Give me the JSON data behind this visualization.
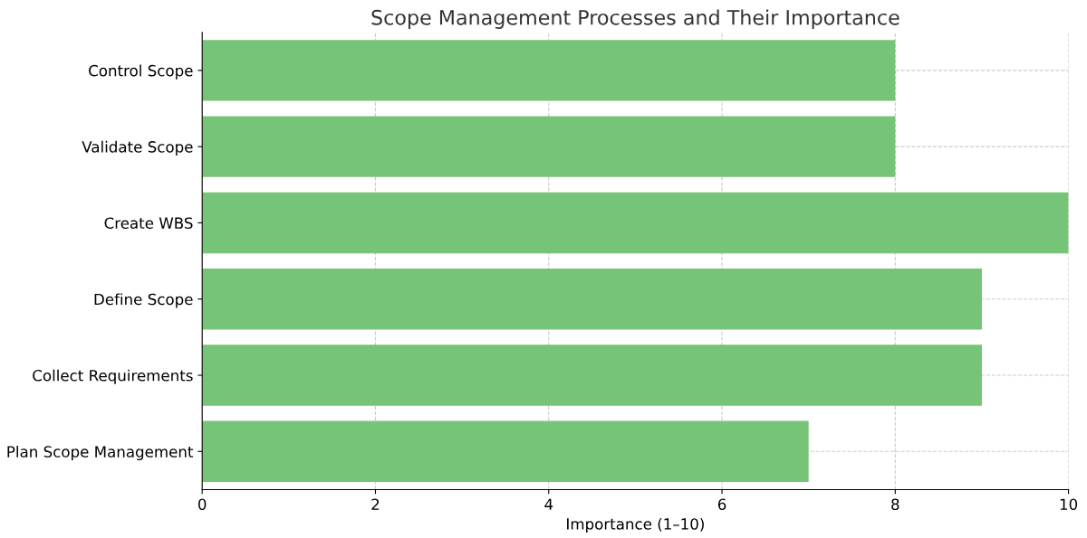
{
  "chart_data": {
    "type": "bar",
    "orientation": "horizontal",
    "title": "Scope Management Processes and Their Importance",
    "xlabel": "Importance (1–10)",
    "categories": [
      "Control Scope",
      "Validate Scope",
      "Create WBS",
      "Define Scope",
      "Collect Requirements",
      "Plan Scope Management"
    ],
    "values": [
      8,
      8,
      10,
      9,
      9,
      7
    ],
    "color": "#76c477",
    "xlim": [
      0,
      10
    ],
    "xticks": [
      0,
      2,
      4,
      6,
      8,
      10
    ],
    "grid": true
  }
}
